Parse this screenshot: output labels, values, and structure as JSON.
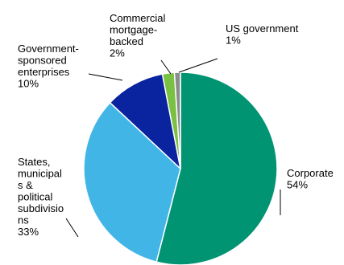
{
  "chart_data": {
    "type": "pie",
    "title": "",
    "start_angle_deg": 0,
    "direction": "clockwise",
    "slices": [
      {
        "label": "Corporate",
        "value": 54,
        "color": "#009473"
      },
      {
        "label": "States, municipal s & political subdivisio ns",
        "value": 33,
        "color": "#41B6E6"
      },
      {
        "label": "Government-sponsored enterprises",
        "value": 10,
        "color": "#0A239F"
      },
      {
        "label": "Commercial mortgage-backed",
        "value": 2,
        "color": "#7AC143"
      },
      {
        "label": "US government",
        "value": 1,
        "color": "#8C8C8C"
      }
    ],
    "label_lines": [
      [
        "Corporate",
        "54%"
      ],
      [
        "States,",
        "municipal",
        "s &",
        "political",
        "subdivisio",
        "ns",
        "33%"
      ],
      [
        "Government-",
        "sponsored",
        "enterprises",
        "10%"
      ],
      [
        "Commercial",
        "mortgage-",
        "backed",
        "2%"
      ],
      [
        "US government",
        "1%"
      ]
    ],
    "legend": "none",
    "leader_lines": true
  }
}
